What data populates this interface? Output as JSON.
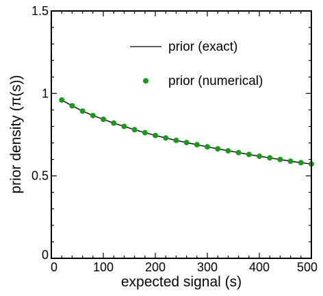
{
  "chart_data": {
    "type": "line",
    "xlabel": "expected signal (s)",
    "ylabel": "prior density (π(s))",
    "xlim": [
      0,
      500
    ],
    "ylim": [
      0,
      1.5
    ],
    "xticks": [
      "0",
      "100",
      "200",
      "300",
      "400",
      "500"
    ],
    "yticks": [
      "0",
      "0.5",
      "1",
      "1.5"
    ],
    "legend_position": "top-right",
    "series": [
      {
        "name": "prior (exact)",
        "style": "line",
        "color": "#000000",
        "x": [
          20,
          40,
          60,
          80,
          100,
          120,
          140,
          160,
          180,
          200,
          220,
          240,
          260,
          280,
          300,
          320,
          340,
          360,
          380,
          400,
          420,
          440,
          460,
          480,
          500
        ],
        "y": [
          0.96,
          0.925,
          0.893,
          0.866,
          0.843,
          0.82,
          0.8,
          0.78,
          0.762,
          0.745,
          0.73,
          0.715,
          0.702,
          0.689,
          0.676,
          0.664,
          0.652,
          0.641,
          0.63,
          0.619,
          0.609,
          0.599,
          0.589,
          0.58,
          0.572
        ]
      },
      {
        "name": "prior (numerical)",
        "style": "markers",
        "color": "#1a9a1a",
        "x": [
          20,
          40,
          60,
          80,
          100,
          120,
          140,
          160,
          180,
          200,
          220,
          240,
          260,
          280,
          300,
          320,
          340,
          360,
          380,
          400,
          420,
          440,
          460,
          480,
          500
        ],
        "y": [
          0.96,
          0.925,
          0.893,
          0.866,
          0.843,
          0.82,
          0.8,
          0.78,
          0.762,
          0.745,
          0.73,
          0.715,
          0.702,
          0.689,
          0.676,
          0.664,
          0.652,
          0.641,
          0.63,
          0.619,
          0.609,
          0.599,
          0.589,
          0.58,
          0.572
        ]
      }
    ]
  }
}
